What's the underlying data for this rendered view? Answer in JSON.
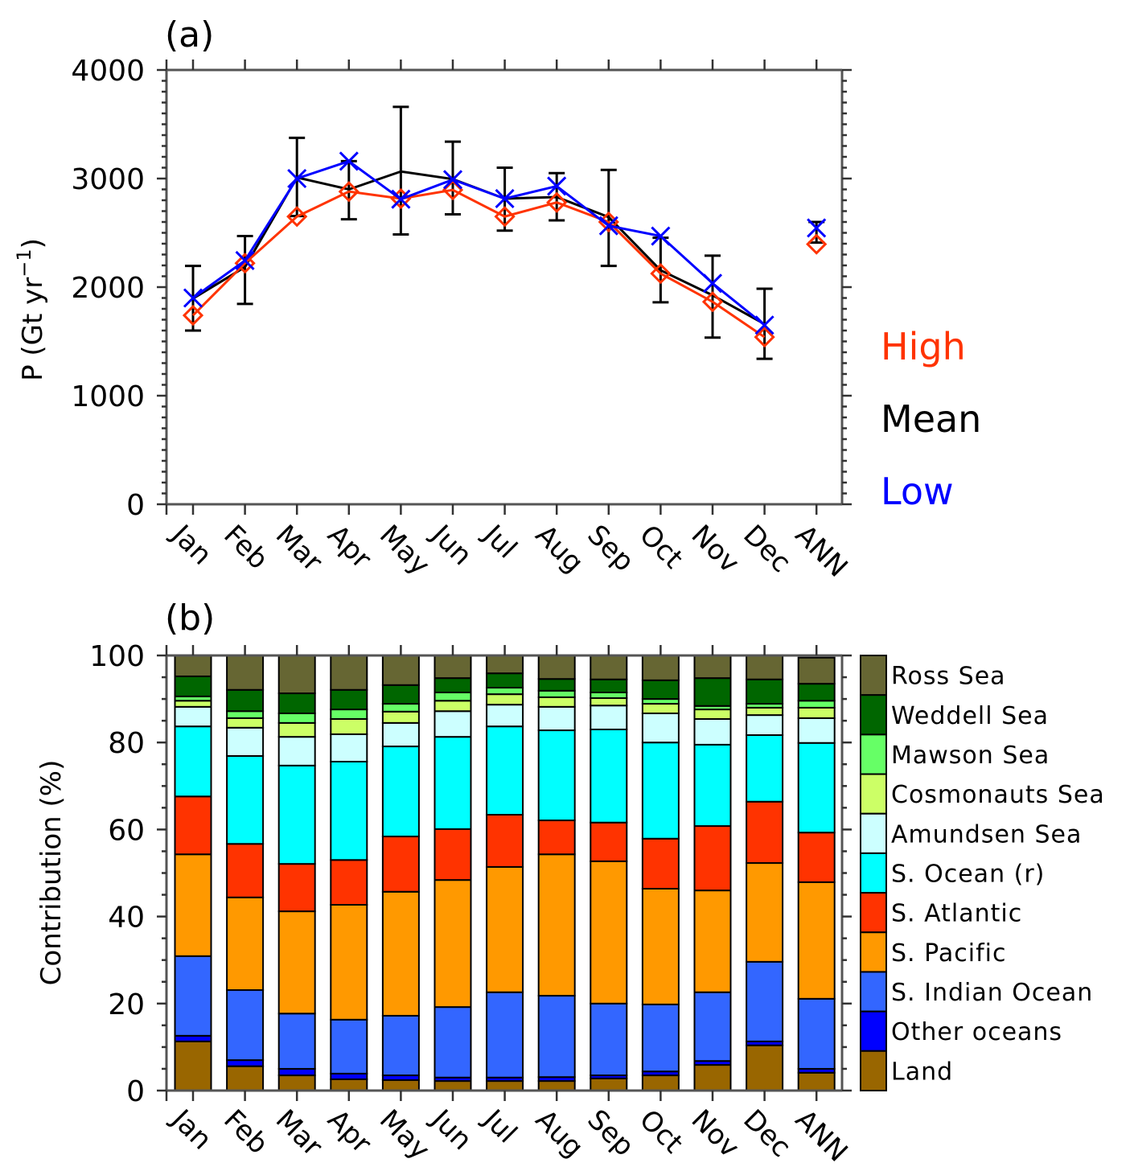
{
  "chart_data": [
    {
      "type": "line",
      "panel_label": "(a)",
      "title": "",
      "xlabel": "",
      "ylabel": "P (Gt yr⁻¹)",
      "ylabel_parts": {
        "main": "P (Gt yr",
        "sup": "−1",
        "close": ")"
      },
      "ylim": [
        0,
        4000
      ],
      "yticks": [
        0,
        1000,
        2000,
        3000,
        4000
      ],
      "yminor_step": 100,
      "categories": [
        "Jan",
        "Feb",
        "Mar",
        "Apr",
        "May",
        "Jun",
        "Jul",
        "Aug",
        "Sep",
        "Oct",
        "Nov",
        "Dec",
        "ANN"
      ],
      "series": [
        {
          "name": "High",
          "color": "#FF3300",
          "marker": "diamond",
          "connect_upto": 12,
          "values": [
            1740,
            2220,
            2650,
            2880,
            2815,
            2895,
            2650,
            2780,
            2600,
            2125,
            1865,
            1540,
            2395
          ]
        },
        {
          "name": "Mean",
          "color": "#000000",
          "marker": "none",
          "connect_upto": 12,
          "values": [
            1895,
            2185,
            3010,
            2900,
            3065,
            2995,
            2815,
            2830,
            2645,
            2155,
            1925,
            1660,
            2540
          ],
          "error_low": [
            1600,
            1845,
            2655,
            2625,
            2485,
            2670,
            2520,
            2615,
            2195,
            1860,
            1535,
            1340,
            2410
          ],
          "error_high": [
            2195,
            2470,
            3375,
            3160,
            3660,
            3340,
            3100,
            3050,
            3080,
            2455,
            2290,
            1985,
            2600
          ]
        },
        {
          "name": "Low",
          "color": "#0000FF",
          "marker": "x",
          "connect_upto": 12,
          "values": [
            1900,
            2245,
            3000,
            3160,
            2810,
            2990,
            2815,
            2930,
            2565,
            2470,
            2035,
            1650,
            2545
          ]
        }
      ],
      "legend": {
        "placement": "right",
        "entries": [
          {
            "label": "High",
            "color": "#FF3300"
          },
          {
            "label": "Mean",
            "color": "#000000"
          },
          {
            "label": "Low",
            "color": "#0000FF"
          }
        ]
      }
    },
    {
      "type": "bar",
      "stacked": true,
      "panel_label": "(b)",
      "title": "",
      "xlabel": "",
      "ylabel": "Contribution (%)",
      "ylim": [
        0,
        100
      ],
      "yticks": [
        0,
        20,
        40,
        60,
        80,
        100
      ],
      "yminor_step": 5,
      "categories": [
        "Jan",
        "Feb",
        "Mar",
        "Apr",
        "May",
        "Jun",
        "Jul",
        "Aug",
        "Sep",
        "Oct",
        "Nov",
        "Dec",
        "ANN"
      ],
      "series": [
        {
          "name": "Land",
          "color": "#996600",
          "values": [
            11.3,
            5.6,
            3.5,
            2.6,
            2.4,
            2.2,
            2.2,
            2.2,
            2.8,
            3.5,
            5.9,
            10.4,
            4.1
          ]
        },
        {
          "name": "Other oceans",
          "color": "#0000FF",
          "values": [
            1.3,
            1.4,
            1.5,
            1.3,
            1.1,
            0.8,
            0.8,
            0.9,
            0.7,
            0.9,
            0.9,
            0.9,
            0.9
          ]
        },
        {
          "name": "S. Indian Ocean",
          "color": "#3366FF",
          "values": [
            18.3,
            16.1,
            12.7,
            12.4,
            13.7,
            16.2,
            19.6,
            18.7,
            16.5,
            15.4,
            15.8,
            18.3,
            16.1
          ]
        },
        {
          "name": "S. Pacific",
          "color": "#FF9900",
          "values": [
            23.4,
            21.3,
            23.5,
            26.4,
            28.5,
            29.2,
            28.8,
            32.5,
            32.7,
            26.6,
            23.4,
            22.7,
            26.8
          ]
        },
        {
          "name": "S. Atlantic",
          "color": "#FF3300",
          "values": [
            13.3,
            12.3,
            10.9,
            10.3,
            12.7,
            11.7,
            12.0,
            7.8,
            8.9,
            11.5,
            14.8,
            14.1,
            11.4
          ]
        },
        {
          "name": "S. Ocean (r)",
          "color": "#00FFFF",
          "values": [
            16.1,
            20.2,
            22.6,
            22.6,
            20.7,
            21.2,
            20.3,
            20.7,
            21.4,
            22.1,
            18.7,
            15.3,
            20.6
          ]
        },
        {
          "name": "Amundsen Sea",
          "color": "#CCFFFF",
          "values": [
            4.5,
            6.5,
            6.6,
            6.3,
            5.4,
            5.9,
            5.0,
            5.4,
            5.5,
            6.7,
            5.9,
            4.6,
            5.7
          ]
        },
        {
          "name": "Cosmonauts Sea",
          "color": "#CCFF66",
          "values": [
            1.4,
            2.2,
            3.2,
            3.5,
            2.6,
            2.4,
            2.4,
            2.2,
            1.7,
            2.2,
            2.2,
            1.7,
            2.4
          ]
        },
        {
          "name": "Mawson Sea",
          "color": "#66FF66",
          "values": [
            1.0,
            1.6,
            2.2,
            2.2,
            1.8,
            1.9,
            1.5,
            1.5,
            1.3,
            1.1,
            0.8,
            0.9,
            1.6
          ]
        },
        {
          "name": "Weddell Sea",
          "color": "#006600",
          "values": [
            4.6,
            4.9,
            4.6,
            4.5,
            4.3,
            3.3,
            3.3,
            2.7,
            3.0,
            4.3,
            6.4,
            5.6,
            3.9
          ]
        },
        {
          "name": "Ross Sea",
          "color": "#666633",
          "values": [
            4.8,
            7.9,
            8.7,
            7.9,
            6.8,
            5.2,
            4.1,
            5.4,
            5.5,
            5.7,
            5.2,
            5.5,
            6.0
          ]
        }
      ],
      "legend": {
        "placement": "right",
        "order": "top-to-bottom",
        "entries": [
          "Ross Sea",
          "Weddell Sea",
          "Mawson Sea",
          "Cosmonauts Sea",
          "Amundsen Sea",
          "S. Ocean (r)",
          "S. Atlantic",
          "S. Pacific",
          "S. Indian Ocean",
          "Other oceans",
          "Land"
        ]
      }
    }
  ]
}
